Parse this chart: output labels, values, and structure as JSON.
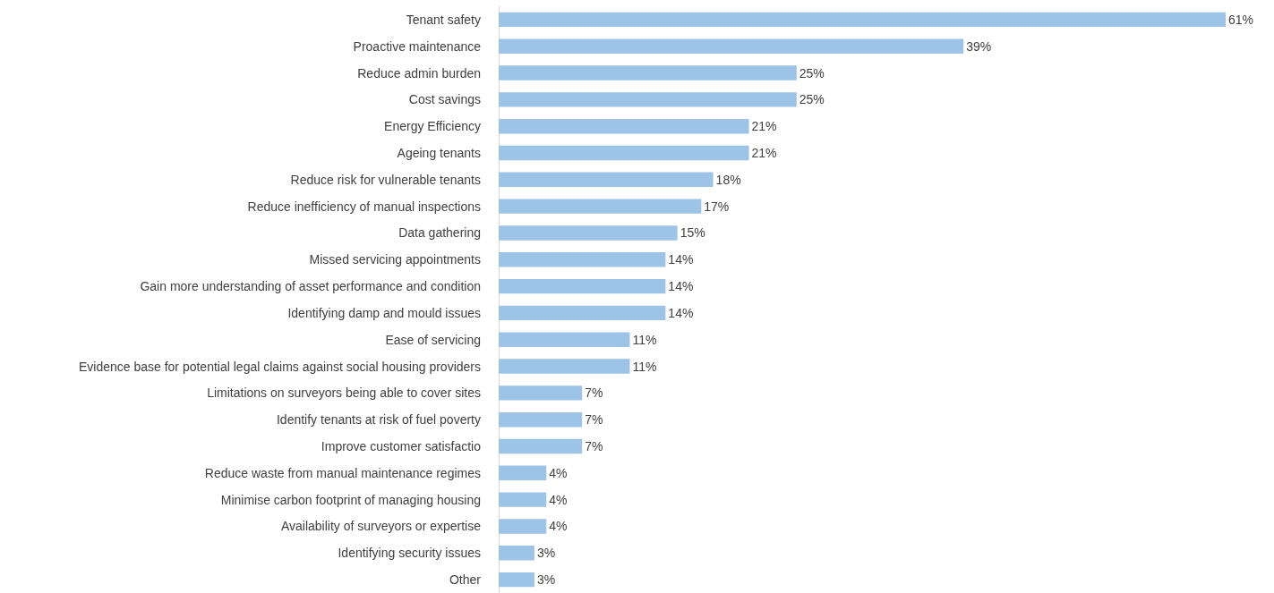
{
  "chart_data": {
    "type": "bar",
    "orientation": "horizontal",
    "categories": [
      "Tenant safety",
      "Proactive maintenance",
      "Reduce admin burden",
      "Cost savings",
      "Energy Efficiency",
      "Ageing tenants",
      "Reduce risk for vulnerable tenants",
      "Reduce inefficiency of manual inspections",
      "Data gathering",
      "Missed servicing appointments",
      "Gain more understanding of asset performance and condition",
      "Identifying damp and mould issues",
      "Ease of servicing",
      "Evidence base for potential legal claims against social housing providers",
      "Limitations on surveyors being able to cover sites",
      "Identify tenants at risk of fuel poverty",
      "Improve customer satisfactio",
      "Reduce waste from manual maintenance regimes",
      "Minimise carbon footprint of managing housing",
      "Availability of surveyors or expertise",
      "Identifying security issues",
      "Other"
    ],
    "values": [
      61,
      39,
      25,
      25,
      21,
      21,
      18,
      17,
      15,
      14,
      14,
      14,
      11,
      11,
      7,
      7,
      7,
      4,
      4,
      4,
      3,
      3
    ],
    "value_labels": [
      "61%",
      "39%",
      "25%",
      "25%",
      "21%",
      "21%",
      "18%",
      "17%",
      "15%",
      "14%",
      "14%",
      "14%",
      "11%",
      "11%",
      "7%",
      "7%",
      "7%",
      "4%",
      "4%",
      "4%",
      "3%",
      "3%"
    ],
    "color": "#9dc3e6",
    "grid": false,
    "tick_labels": "y"
  }
}
